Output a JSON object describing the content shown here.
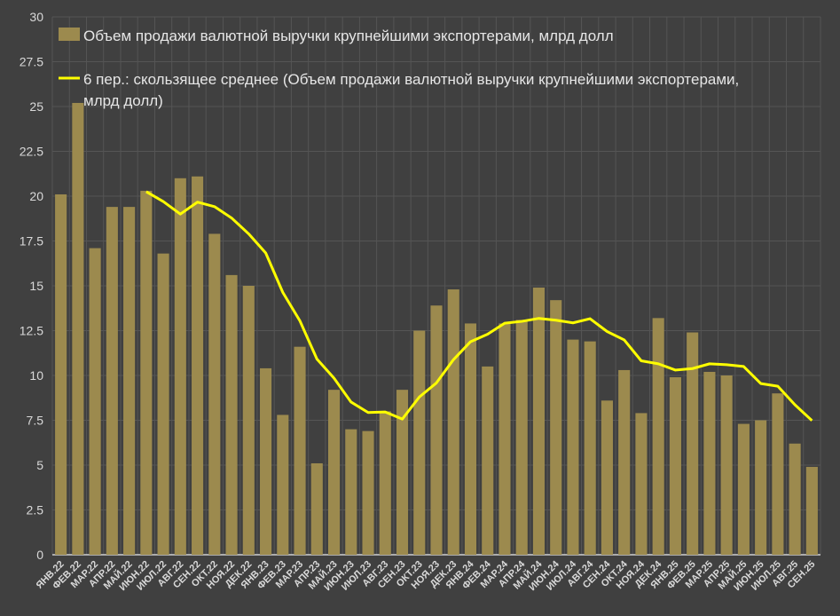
{
  "chart_data": {
    "type": "bar",
    "title": "",
    "xlabel": "",
    "ylabel": "",
    "ylim": [
      0,
      30
    ],
    "yticks": [
      "0",
      "2.5",
      "5",
      "7.5",
      "10",
      "12.5",
      "15",
      "17.5",
      "20",
      "22.5",
      "25",
      "27.5",
      "30"
    ],
    "grid": true,
    "legend_position": "top",
    "categories": [
      "ЯНВ.22",
      "ФЕВ.22",
      "МАР.22",
      "АПР.22",
      "МАЙ.22",
      "ИЮН.22",
      "ИЮЛ.22",
      "АВГ.22",
      "СЕН.22",
      "ОКТ.22",
      "НОЯ.22",
      "ДЕК.22",
      "ЯНВ.23",
      "ФЕВ.23",
      "МАР.23",
      "АПР.23",
      "МАЙ.23",
      "ИЮН.23",
      "ИЮЛ.23",
      "АВГ.23",
      "СЕН.23",
      "ОКТ.23",
      "НОЯ.23",
      "ДЕК.23",
      "ЯНВ.24",
      "ФЕВ.24",
      "МАР.24",
      "АПР.24",
      "МАЙ.24",
      "ИЮН.24",
      "ИЮЛ.24",
      "АВГ.24",
      "СЕН.24",
      "ОКТ.24",
      "НОЯ.24",
      "ДЕК.24",
      "ЯНВ.25",
      "ФЕВ.25",
      "МАР.25",
      "АПР.25",
      "МАЙ.25",
      "ИЮН.25",
      "ИЮЛ.25",
      "АВГ.25",
      "СЕН.25"
    ],
    "series": [
      {
        "name": "Объем продажи  валютной выручки крупнейшими экспортерами, млрд долл",
        "type": "bar",
        "color": "#9c8a4e",
        "values": [
          20.1,
          25.2,
          17.1,
          19.4,
          19.4,
          20.3,
          16.8,
          21.0,
          21.1,
          17.9,
          15.6,
          15.0,
          10.4,
          7.8,
          11.6,
          5.1,
          9.2,
          7.0,
          6.9,
          8.0,
          9.2,
          12.5,
          13.9,
          14.8,
          12.9,
          10.5,
          12.9,
          13.1,
          14.9,
          14.2,
          12.0,
          11.9,
          8.6,
          10.3,
          7.9,
          13.2,
          9.9,
          12.4,
          10.2,
          10.0,
          7.3,
          7.5,
          9.0,
          6.2,
          4.9
        ]
      },
      {
        "name": "6 пер.: скользящее среднее (Объем продажи  валютной выручки крупнейшими экспортерами,",
        "name_line2": "млрд долл)",
        "type": "line",
        "color": "#ffff00",
        "moving_average_period": 6
      }
    ]
  }
}
